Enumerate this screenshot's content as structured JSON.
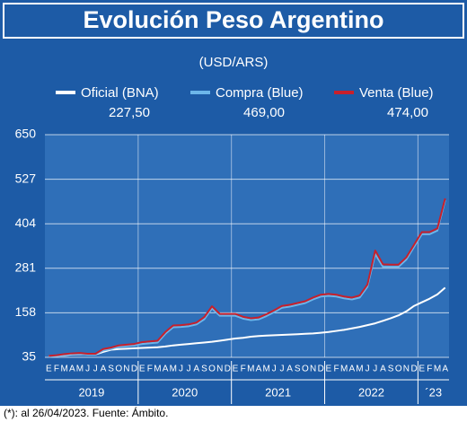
{
  "chart_data": {
    "type": "line",
    "title": "Evolución Peso Argentino",
    "subtitle": "(USD/ARS)",
    "note": "(*): al 26/04/2023. Fuente: Ámbito.",
    "categories": [
      "E",
      "F",
      "M",
      "A",
      "M",
      "J",
      "J",
      "A",
      "S",
      "O",
      "N",
      "D",
      "E",
      "F",
      "M",
      "A",
      "M",
      "J",
      "J",
      "A",
      "S",
      "O",
      "N",
      "D",
      "E",
      "F",
      "M",
      "A",
      "M",
      "J",
      "J",
      "A",
      "S",
      "O",
      "N",
      "D",
      "E",
      "F",
      "M",
      "A",
      "M",
      "J",
      "J",
      "A",
      "S",
      "O",
      "N",
      "D",
      "E",
      "F",
      "M",
      "A"
    ],
    "years": [
      "2019",
      "2020",
      "2021",
      "2022",
      "´23"
    ],
    "ylim": [
      35,
      650
    ],
    "yticks": [
      35,
      158,
      281,
      404,
      527,
      650
    ],
    "grid": true,
    "series": [
      {
        "name": "Oficial (BNA)",
        "color": "#ffffff",
        "values": [
          38,
          39,
          41,
          43,
          44,
          43,
          43,
          50,
          56,
          58,
          59,
          60,
          61,
          62,
          63,
          65,
          68,
          70,
          72,
          74,
          76,
          78,
          81,
          84,
          87,
          89,
          92,
          94,
          95,
          96,
          97,
          98,
          99,
          100,
          101,
          103,
          105,
          108,
          111,
          115,
          119,
          124,
          129,
          136,
          143,
          151,
          162,
          177,
          187,
          197,
          209,
          227.5
        ],
        "value_labels": [
          null,
          null,
          null,
          null,
          null,
          null,
          null,
          null,
          null,
          null,
          null,
          null,
          null,
          null,
          null,
          null,
          null,
          null,
          null,
          null,
          null,
          null,
          null,
          null,
          null,
          null,
          null,
          null,
          null,
          null,
          null,
          null,
          null,
          null,
          null,
          null,
          null,
          null,
          null,
          null,
          null,
          null,
          null,
          null,
          null,
          null,
          null,
          null,
          null,
          null,
          null,
          "227,50"
        ]
      },
      {
        "name": "Compra (Blue)",
        "color": "#6cb6ea",
        "values": [
          37,
          39,
          42,
          44,
          45,
          43,
          43,
          54,
          58,
          64,
          66,
          68,
          72,
          74,
          76,
          100,
          118,
          119,
          121,
          126,
          140,
          170,
          150,
          150,
          150,
          142,
          138,
          140,
          149,
          160,
          172,
          175,
          180,
          185,
          195,
          203,
          205,
          203,
          198,
          195,
          200,
          230,
          320,
          285,
          285,
          285,
          305,
          340,
          375,
          375,
          385,
          469
        ],
        "value_labels": [
          null,
          null,
          null,
          null,
          null,
          null,
          null,
          null,
          null,
          null,
          null,
          null,
          null,
          null,
          null,
          null,
          null,
          null,
          null,
          null,
          null,
          null,
          null,
          null,
          null,
          null,
          null,
          null,
          null,
          null,
          null,
          null,
          null,
          null,
          null,
          null,
          null,
          null,
          null,
          null,
          null,
          null,
          null,
          null,
          null,
          null,
          null,
          null,
          null,
          null,
          null,
          "469,00"
        ]
      },
      {
        "name": "Venta (Blue)",
        "color": "#c8202b",
        "values": [
          39,
          41,
          44,
          46,
          47,
          45,
          45,
          58,
          62,
          68,
          70,
          72,
          77,
          79,
          81,
          105,
          123,
          124,
          126,
          131,
          146,
          176,
          155,
          155,
          155,
          147,
          143,
          145,
          154,
          165,
          177,
          180,
          185,
          190,
          200,
          208,
          210,
          208,
          203,
          200,
          206,
          236,
          330,
          292,
          291,
          291,
          311,
          346,
          381,
          381,
          391,
          474
        ],
        "value_labels": [
          null,
          null,
          null,
          null,
          null,
          null,
          null,
          null,
          null,
          null,
          null,
          null,
          null,
          null,
          null,
          null,
          null,
          null,
          null,
          null,
          null,
          null,
          null,
          null,
          null,
          null,
          null,
          null,
          null,
          null,
          null,
          null,
          null,
          null,
          null,
          null,
          null,
          null,
          null,
          null,
          null,
          null,
          null,
          null,
          null,
          null,
          null,
          null,
          null,
          null,
          null,
          "474,00"
        ]
      }
    ]
  }
}
